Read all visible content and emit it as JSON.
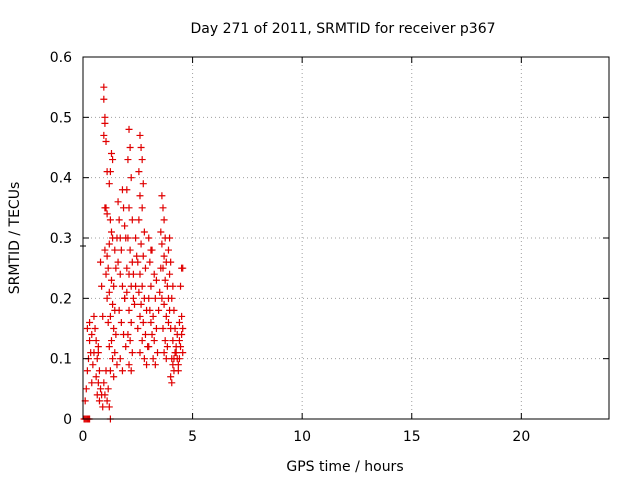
{
  "chart_data": {
    "type": "scatter",
    "title": "Day 271 of 2011, SRMTID for receiver p367",
    "xlabel": "GPS time / hours",
    "ylabel": "SRMTID / TECUs",
    "xlim": [
      0,
      24
    ],
    "ylim": [
      0,
      0.6
    ],
    "x_ticks": [
      0,
      5,
      10,
      15,
      20
    ],
    "x_tick_labels": [
      "0",
      "5",
      "10",
      "15",
      "20"
    ],
    "y_ticks": [
      0,
      0.1,
      0.2,
      0.3,
      0.4,
      0.5,
      0.6
    ],
    "y_tick_labels": [
      "0",
      "0.1",
      "0.2",
      "0.3",
      "0.4",
      "0.5",
      "0.6"
    ],
    "grid": true,
    "marker": "plus",
    "color": "#e00000",
    "series": [
      {
        "points": [
          [
            0.05,
            0.0
          ],
          [
            0.1,
            0.0
          ],
          [
            0.15,
            0.0
          ],
          [
            0.2,
            0.0
          ],
          [
            0.25,
            0.0
          ],
          [
            0.3,
            0.0
          ],
          [
            0.1,
            0.03
          ],
          [
            0.15,
            0.05
          ],
          [
            0.2,
            0.08
          ],
          [
            0.25,
            0.1
          ],
          [
            0.3,
            0.13
          ],
          [
            0.2,
            0.15
          ],
          [
            0.3,
            0.16
          ],
          [
            0.35,
            0.11
          ],
          [
            0.4,
            0.06
          ],
          [
            0.45,
            0.09
          ],
          [
            0.5,
            0.11
          ],
          [
            0.55,
            0.15
          ],
          [
            0.6,
            0.07
          ],
          [
            0.65,
            0.1
          ],
          [
            0.7,
            0.12
          ],
          [
            0.75,
            0.03
          ],
          [
            0.8,
            0.05
          ],
          [
            0.85,
            0.04
          ],
          [
            0.9,
            0.02
          ],
          [
            0.95,
            0.06
          ],
          [
            1.0,
            0.04
          ],
          [
            1.05,
            0.08
          ],
          [
            1.1,
            0.03
          ],
          [
            1.15,
            0.05
          ],
          [
            1.2,
            0.02
          ],
          [
            1.25,
            0.0
          ],
          [
            0.5,
            0.17
          ],
          [
            0.7,
            0.11
          ],
          [
            0.6,
            0.13
          ],
          [
            0.4,
            0.14
          ],
          [
            0.95,
            0.55
          ],
          [
            0.95,
            0.53
          ],
          [
            1.0,
            0.5
          ],
          [
            1.0,
            0.49
          ],
          [
            0.95,
            0.47
          ],
          [
            1.05,
            0.46
          ],
          [
            1.3,
            0.44
          ],
          [
            1.35,
            0.43
          ],
          [
            1.25,
            0.41
          ],
          [
            1.1,
            0.41
          ],
          [
            1.2,
            0.39
          ],
          [
            1.05,
            0.35
          ],
          [
            1.0,
            0.35
          ],
          [
            1.1,
            0.34
          ],
          [
            1.25,
            0.33
          ],
          [
            1.3,
            0.31
          ],
          [
            1.35,
            0.3
          ],
          [
            1.2,
            0.29
          ],
          [
            1.0,
            0.28
          ],
          [
            1.1,
            0.27
          ],
          [
            1.15,
            0.25
          ],
          [
            1.05,
            0.24
          ],
          [
            1.3,
            0.23
          ],
          [
            1.4,
            0.22
          ],
          [
            1.2,
            0.21
          ],
          [
            1.1,
            0.2
          ],
          [
            1.35,
            0.19
          ],
          [
            1.45,
            0.18
          ],
          [
            1.25,
            0.17
          ],
          [
            1.15,
            0.16
          ],
          [
            1.4,
            0.15
          ],
          [
            1.5,
            0.14
          ],
          [
            1.3,
            0.13
          ],
          [
            1.2,
            0.12
          ],
          [
            1.45,
            0.11
          ],
          [
            1.35,
            0.1
          ],
          [
            1.55,
            0.09
          ],
          [
            1.25,
            0.08
          ],
          [
            1.4,
            0.07
          ],
          [
            1.6,
            0.36
          ],
          [
            1.65,
            0.33
          ],
          [
            1.7,
            0.3
          ],
          [
            1.75,
            0.28
          ],
          [
            1.8,
            0.38
          ],
          [
            1.85,
            0.35
          ],
          [
            1.9,
            0.32
          ],
          [
            1.95,
            0.3
          ],
          [
            1.6,
            0.26
          ],
          [
            1.7,
            0.24
          ],
          [
            1.8,
            0.22
          ],
          [
            1.9,
            0.2
          ],
          [
            1.65,
            0.18
          ],
          [
            1.75,
            0.16
          ],
          [
            1.85,
            0.14
          ],
          [
            1.95,
            0.12
          ],
          [
            1.7,
            0.1
          ],
          [
            1.8,
            0.08
          ],
          [
            1.9,
            0.2
          ],
          [
            2.0,
            0.25
          ],
          [
            2.1,
            0.48
          ],
          [
            2.15,
            0.45
          ],
          [
            2.05,
            0.43
          ],
          [
            2.2,
            0.4
          ],
          [
            2.0,
            0.38
          ],
          [
            2.1,
            0.35
          ],
          [
            2.25,
            0.33
          ],
          [
            2.05,
            0.3
          ],
          [
            2.15,
            0.28
          ],
          [
            2.25,
            0.26
          ],
          [
            2.1,
            0.24
          ],
          [
            2.2,
            0.22
          ],
          [
            2.0,
            0.21
          ],
          [
            2.3,
            0.2
          ],
          [
            2.1,
            0.18
          ],
          [
            2.2,
            0.16
          ],
          [
            2.05,
            0.14
          ],
          [
            2.15,
            0.13
          ],
          [
            2.25,
            0.11
          ],
          [
            2.1,
            0.09
          ],
          [
            2.2,
            0.08
          ],
          [
            2.35,
            0.19
          ],
          [
            2.4,
            0.22
          ],
          [
            2.3,
            0.24
          ],
          [
            2.6,
            0.47
          ],
          [
            2.65,
            0.45
          ],
          [
            2.7,
            0.43
          ],
          [
            2.55,
            0.41
          ],
          [
            2.75,
            0.39
          ],
          [
            2.6,
            0.37
          ],
          [
            2.7,
            0.35
          ],
          [
            2.55,
            0.33
          ],
          [
            2.8,
            0.31
          ],
          [
            2.65,
            0.29
          ],
          [
            2.75,
            0.27
          ],
          [
            2.5,
            0.26
          ],
          [
            2.85,
            0.25
          ],
          [
            2.6,
            0.24
          ],
          [
            2.7,
            0.22
          ],
          [
            2.55,
            0.21
          ],
          [
            2.8,
            0.2
          ],
          [
            2.65,
            0.19
          ],
          [
            2.9,
            0.18
          ],
          [
            2.6,
            0.17
          ],
          [
            2.75,
            0.16
          ],
          [
            2.5,
            0.15
          ],
          [
            2.85,
            0.14
          ],
          [
            2.7,
            0.13
          ],
          [
            2.95,
            0.12
          ],
          [
            2.6,
            0.11
          ],
          [
            2.8,
            0.1
          ],
          [
            2.9,
            0.09
          ],
          [
            3.0,
            0.2
          ],
          [
            3.05,
            0.18
          ],
          [
            3.1,
            0.16
          ],
          [
            3.15,
            0.14
          ],
          [
            3.0,
            0.12
          ],
          [
            3.2,
            0.1
          ],
          [
            3.1,
            0.22
          ],
          [
            3.25,
            0.24
          ],
          [
            3.05,
            0.26
          ],
          [
            3.15,
            0.28
          ],
          [
            3.3,
            0.2
          ],
          [
            3.2,
            0.17
          ],
          [
            3.35,
            0.15
          ],
          [
            3.25,
            0.13
          ],
          [
            3.4,
            0.11
          ],
          [
            3.3,
            0.09
          ],
          [
            3.45,
            0.18
          ],
          [
            3.5,
            0.21
          ],
          [
            3.35,
            0.23
          ],
          [
            3.55,
            0.25
          ],
          [
            3.6,
            0.37
          ],
          [
            3.65,
            0.35
          ],
          [
            3.7,
            0.33
          ],
          [
            3.55,
            0.31
          ],
          [
            3.75,
            0.3
          ],
          [
            3.6,
            0.29
          ],
          [
            3.7,
            0.27
          ],
          [
            3.8,
            0.26
          ],
          [
            3.65,
            0.25
          ],
          [
            3.75,
            0.23
          ],
          [
            3.85,
            0.22
          ],
          [
            3.6,
            0.2
          ],
          [
            3.7,
            0.19
          ],
          [
            3.8,
            0.17
          ],
          [
            3.9,
            0.16
          ],
          [
            3.65,
            0.15
          ],
          [
            3.75,
            0.13
          ],
          [
            3.85,
            0.12
          ],
          [
            3.7,
            0.11
          ],
          [
            3.8,
            0.1
          ],
          [
            3.95,
            0.3
          ],
          [
            3.9,
            0.28
          ],
          [
            4.0,
            0.26
          ],
          [
            3.95,
            0.24
          ],
          [
            4.05,
            0.1
          ],
          [
            4.1,
            0.09
          ],
          [
            4.15,
            0.08
          ],
          [
            4.0,
            0.07
          ],
          [
            4.2,
            0.11
          ],
          [
            4.25,
            0.12
          ],
          [
            4.1,
            0.13
          ],
          [
            4.3,
            0.14
          ],
          [
            4.15,
            0.1
          ],
          [
            4.35,
            0.09
          ],
          [
            4.05,
            0.06
          ],
          [
            4.2,
            0.15
          ],
          [
            4.4,
            0.13
          ],
          [
            4.25,
            0.11
          ],
          [
            4.45,
            0.12
          ],
          [
            4.3,
            0.1
          ],
          [
            4.5,
            0.14
          ],
          [
            4.35,
            0.08
          ],
          [
            4.55,
            0.11
          ],
          [
            4.4,
            0.1
          ],
          [
            4.5,
            0.25
          ],
          [
            4.55,
            0.25
          ],
          [
            4.45,
            0.22
          ],
          [
            4.5,
            0.17
          ],
          [
            4.55,
            0.15
          ],
          [
            4.4,
            0.16
          ],
          [
            0.8,
            0.26
          ],
          [
            0.85,
            0.22
          ],
          [
            0.9,
            0.17
          ],
          [
            0.75,
            0.08
          ],
          [
            0.7,
            0.06
          ],
          [
            0.65,
            0.04
          ],
          [
            1.5,
            0.25
          ],
          [
            1.55,
            0.3
          ],
          [
            1.45,
            0.28
          ],
          [
            2.4,
            0.3
          ],
          [
            2.45,
            0.27
          ],
          [
            3.0,
            0.3
          ],
          [
            3.1,
            0.28
          ],
          [
            3.9,
            0.2
          ],
          [
            3.95,
            0.18
          ],
          [
            4.0,
            0.15
          ],
          [
            4.05,
            0.2
          ],
          [
            4.1,
            0.22
          ],
          [
            4.15,
            0.18
          ]
        ]
      }
    ]
  }
}
